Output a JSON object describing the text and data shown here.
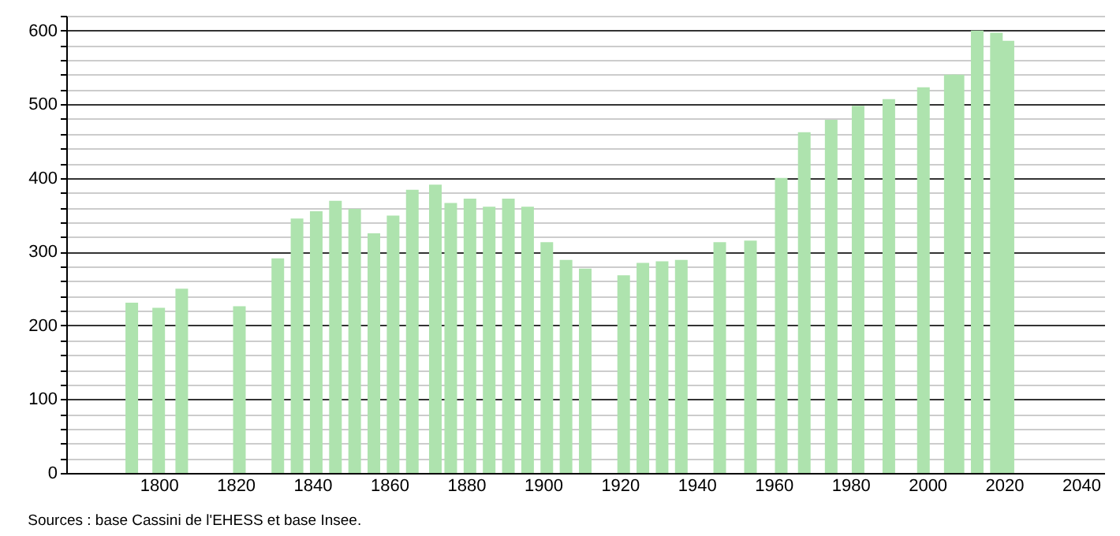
{
  "chart_data": {
    "type": "bar",
    "x": [
      1793,
      1800,
      1806,
      1821,
      1831,
      1836,
      1841,
      1846,
      1851,
      1856,
      1861,
      1866,
      1872,
      1876,
      1881,
      1886,
      1891,
      1896,
      1901,
      1906,
      1911,
      1921,
      1926,
      1931,
      1936,
      1946,
      1954,
      1962,
      1968,
      1975,
      1982,
      1990,
      1999,
      2006,
      2008,
      2013,
      2018,
      2021
    ],
    "values": [
      231,
      224,
      250,
      226,
      291,
      345,
      355,
      369,
      358,
      325,
      349,
      384,
      391,
      366,
      372,
      361,
      372,
      361,
      313,
      289,
      277,
      268,
      285,
      287,
      289,
      313,
      315,
      400,
      462,
      479,
      498,
      507,
      523,
      540,
      540,
      600,
      597,
      586
    ],
    "color": "#aee3ae",
    "xlim": [
      1778,
      2044
    ],
    "xticks": [
      1800,
      1820,
      1840,
      1860,
      1880,
      1900,
      1920,
      1940,
      1960,
      1980,
      2000,
      2020,
      2040
    ],
    "ylim": [
      0,
      620
    ],
    "yticks": [
      0,
      {
        "value": 20,
        "label": null
      },
      {
        "value": 40,
        "label": null
      },
      {
        "value": 60,
        "label": null
      },
      {
        "value": 80,
        "label": null
      },
      100,
      {
        "value": 120,
        "label": null
      },
      {
        "value": 140,
        "label": null
      },
      {
        "value": 160,
        "label": null
      },
      {
        "value": 180,
        "label": null
      },
      200,
      {
        "value": 220,
        "label": null
      },
      {
        "value": 240,
        "label": null
      },
      {
        "value": 260,
        "label": null
      },
      {
        "value": 280,
        "label": null
      },
      300,
      {
        "value": 320,
        "label": null
      },
      {
        "value": 340,
        "label": null
      },
      {
        "value": 360,
        "label": null
      },
      {
        "value": 380,
        "label": null
      },
      400,
      {
        "value": 420,
        "label": null
      },
      {
        "value": 440,
        "label": null
      },
      {
        "value": 460,
        "label": null
      },
      {
        "value": 480,
        "label": null
      },
      500,
      {
        "value": 520,
        "label": null
      },
      {
        "value": 540,
        "label": null
      },
      {
        "value": 560,
        "label": null
      },
      {
        "value": 580,
        "label": null
      },
      600,
      {
        "value": 620,
        "label": null
      }
    ],
    "grid": "y",
    "annotations": [
      "Sources : base Cassini de l'EHESS et base Insee."
    ]
  }
}
